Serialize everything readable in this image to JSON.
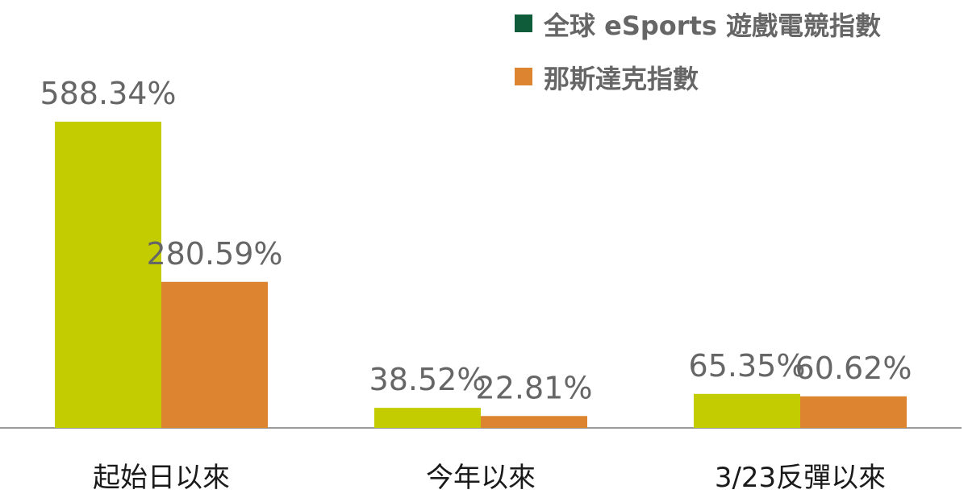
{
  "chart_data": {
    "type": "bar",
    "title": "",
    "xlabel": "",
    "ylabel": "",
    "ylim": [
      0,
      588.34
    ],
    "grid": false,
    "legend_position": "top-right",
    "categories": [
      "起始日以來",
      "今年以來",
      "3/23反彈以來"
    ],
    "series": [
      {
        "name": "全球 eSports 遊戲電競指數",
        "color": "#c2cc00",
        "legend_color": "#0f5c3a",
        "values": [
          588.34,
          38.52,
          65.35
        ],
        "labels": [
          "588.34%",
          "38.52%",
          "65.35%"
        ]
      },
      {
        "name": "那斯達克指數",
        "color": "#dd8430",
        "legend_color": "#dd8430",
        "values": [
          280.59,
          22.81,
          60.62
        ],
        "labels": [
          "280.59%",
          "22.81%",
          "60.62%"
        ]
      }
    ]
  }
}
